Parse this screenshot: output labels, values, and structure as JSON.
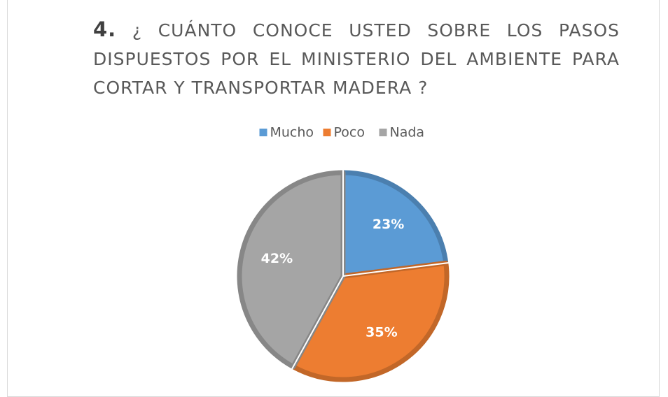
{
  "chart_data": {
    "type": "pie",
    "number": "4.",
    "title": "¿ CUÁNTO CONOCE USTED SOBRE LOS PASOS DISPUESTOS POR EL MINISTERIO DEL AMBIENTE PARA CORTAR Y TRANSPORTAR MADERA ?",
    "categories": [
      "Mucho",
      "Poco",
      "Nada"
    ],
    "values": [
      23,
      35,
      42
    ],
    "value_labels": [
      "23%",
      "35%",
      "42%"
    ],
    "colors": [
      "#5b9bd5",
      "#ed7d31",
      "#a5a5a5"
    ],
    "legend": "top"
  }
}
